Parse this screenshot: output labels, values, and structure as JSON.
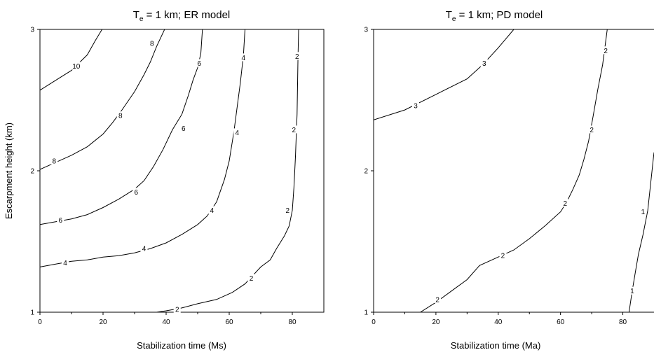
{
  "chart_data": [
    {
      "type": "contour",
      "title_main": "T",
      "title_sub": "e",
      "title_rest": " = 1 km; ER model",
      "xlabel": "Stabilization time (Ms)",
      "ylabel": "Escarpment height (km)",
      "xlim": [
        0,
        90
      ],
      "ylim": [
        1,
        3
      ],
      "xticks": [
        "0",
        "20",
        "40",
        "60",
        "80"
      ],
      "yticks": [
        "1",
        "2",
        "3"
      ],
      "contours": [
        {
          "level": "10",
          "points": [
            [
              0,
              2.57
            ],
            [
              5,
              2.64
            ],
            [
              10,
              2.71
            ],
            [
              15,
              2.82
            ],
            [
              17.5,
              2.92
            ],
            [
              19.7,
              3.0
            ]
          ],
          "labels": [
            [
              11.5,
              2.74
            ]
          ]
        },
        {
          "level": "8",
          "points": [
            [
              0,
              2.01
            ],
            [
              5,
              2.06
            ],
            [
              10,
              2.11
            ],
            [
              15,
              2.17
            ],
            [
              20,
              2.26
            ],
            [
              23,
              2.34
            ],
            [
              26,
              2.43
            ],
            [
              30,
              2.56
            ],
            [
              33,
              2.68
            ],
            [
              35,
              2.77
            ],
            [
              37,
              2.88
            ],
            [
              39.5,
              3.0
            ]
          ],
          "labels": [
            [
              4.5,
              2.07
            ],
            [
              25.5,
              2.39
            ],
            [
              35.5,
              2.9
            ]
          ]
        },
        {
          "level": "6",
          "points": [
            [
              0,
              1.62
            ],
            [
              5,
              1.64
            ],
            [
              10,
              1.66
            ],
            [
              15,
              1.69
            ],
            [
              20,
              1.74
            ],
            [
              25,
              1.8
            ],
            [
              30,
              1.87
            ],
            [
              33,
              1.93
            ],
            [
              36,
              2.03
            ],
            [
              39,
              2.15
            ],
            [
              42,
              2.29
            ],
            [
              45,
              2.4
            ],
            [
              47,
              2.53
            ],
            [
              48.5,
              2.64
            ],
            [
              50,
              2.73
            ],
            [
              51,
              2.83
            ],
            [
              51.5,
              3.0
            ]
          ],
          "labels": [
            [
              6.5,
              1.65
            ],
            [
              30.5,
              1.85
            ],
            [
              45.5,
              2.3
            ],
            [
              50.5,
              2.76
            ]
          ]
        },
        {
          "level": "4",
          "points": [
            [
              0,
              1.32
            ],
            [
              5,
              1.34
            ],
            [
              10,
              1.36
            ],
            [
              15,
              1.37
            ],
            [
              20,
              1.39
            ],
            [
              25,
              1.4
            ],
            [
              30,
              1.42
            ],
            [
              35,
              1.45
            ],
            [
              40,
              1.49
            ],
            [
              45,
              1.55
            ],
            [
              50,
              1.62
            ],
            [
              53,
              1.68
            ],
            [
              56,
              1.78
            ],
            [
              58.5,
              1.94
            ],
            [
              60,
              2.07
            ],
            [
              61.5,
              2.28
            ],
            [
              62.5,
              2.45
            ],
            [
              63.5,
              2.62
            ],
            [
              64.5,
              2.82
            ],
            [
              65,
              3.0
            ]
          ],
          "labels": [
            [
              8,
              1.35
            ],
            [
              33,
              1.45
            ],
            [
              54.5,
              1.72
            ],
            [
              62.5,
              2.27
            ],
            [
              64.5,
              2.8
            ]
          ]
        },
        {
          "level": "2",
          "points": [
            [
              37,
              1.0
            ],
            [
              40,
              1.01
            ],
            [
              45,
              1.03
            ],
            [
              50,
              1.06
            ],
            [
              56,
              1.09
            ],
            [
              61,
              1.14
            ],
            [
              65,
              1.2
            ],
            [
              70,
              1.32
            ],
            [
              73,
              1.37
            ],
            [
              75,
              1.45
            ],
            [
              77.5,
              1.54
            ],
            [
              79,
              1.61
            ],
            [
              80,
              1.72
            ],
            [
              80.5,
              1.88
            ],
            [
              81,
              2.1
            ],
            [
              81.5,
              2.4
            ],
            [
              81.8,
              2.8
            ],
            [
              82,
              3.0
            ]
          ],
          "labels": [
            [
              43.5,
              1.02
            ],
            [
              67,
              1.24
            ],
            [
              78.5,
              1.72
            ],
            [
              80.5,
              2.29
            ],
            [
              81.5,
              2.81
            ]
          ]
        }
      ]
    },
    {
      "type": "contour",
      "title_main": "T",
      "title_sub": "e",
      "title_rest": " = 1 km; PD model",
      "xlabel": "Stabilization time (Ma)",
      "ylabel": "",
      "xlim": [
        0,
        90
      ],
      "ylim": [
        1,
        3
      ],
      "xticks": [
        "0",
        "20",
        "40",
        "60",
        "80"
      ],
      "yticks": [
        "1",
        "2",
        "3"
      ],
      "contours": [
        {
          "level": "3",
          "points": [
            [
              0,
              2.36
            ],
            [
              10,
              2.43
            ],
            [
              20,
              2.54
            ],
            [
              30,
              2.65
            ],
            [
              35,
              2.75
            ],
            [
              40,
              2.87
            ],
            [
              45,
              3.0
            ]
          ],
          "labels": [
            [
              13.5,
              2.46
            ],
            [
              35.5,
              2.76
            ]
          ]
        },
        {
          "level": "2",
          "points": [
            [
              15,
              1.0
            ],
            [
              20,
              1.07
            ],
            [
              25,
              1.15
            ],
            [
              30,
              1.23
            ],
            [
              34,
              1.33
            ],
            [
              40,
              1.39
            ],
            [
              45,
              1.44
            ],
            [
              50,
              1.52
            ],
            [
              55,
              1.61
            ],
            [
              60,
              1.71
            ],
            [
              62,
              1.78
            ],
            [
              64,
              1.87
            ],
            [
              66,
              1.97
            ],
            [
              67.5,
              2.08
            ],
            [
              69,
              2.21
            ],
            [
              70.5,
              2.39
            ],
            [
              72,
              2.58
            ],
            [
              73.5,
              2.75
            ],
            [
              75,
              3.0
            ]
          ],
          "labels": [
            [
              20.5,
              1.09
            ],
            [
              41.5,
              1.4
            ],
            [
              61.5,
              1.77
            ],
            [
              70,
              2.29
            ],
            [
              74.5,
              2.85
            ]
          ]
        },
        {
          "level": "1",
          "points": [
            [
              82,
              1.0
            ],
            [
              83,
              1.15
            ],
            [
              84,
              1.28
            ],
            [
              85,
              1.41
            ],
            [
              86.5,
              1.55
            ],
            [
              88,
              1.72
            ],
            [
              90,
              2.13
            ]
          ],
          "labels": [
            [
              83,
              1.15
            ],
            [
              86.5,
              1.71
            ]
          ]
        }
      ]
    }
  ]
}
